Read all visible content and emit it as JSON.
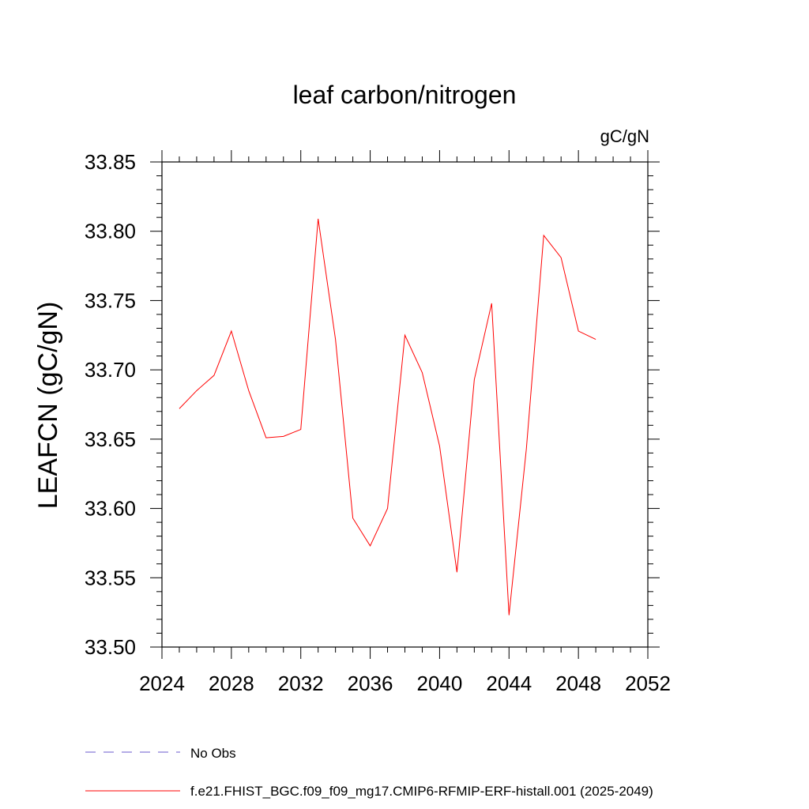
{
  "chart_data": {
    "type": "line",
    "title": "leaf carbon/nitrogen",
    "units_label": "gC/gN",
    "ylabel": "LEAFCN  (gC/gN)",
    "xlabel": "",
    "xlim": [
      2024,
      2052
    ],
    "ylim": [
      33.5,
      33.85
    ],
    "x_ticks": [
      "2024",
      "2028",
      "2032",
      "2036",
      "2040",
      "2044",
      "2048",
      "2052"
    ],
    "y_ticks": [
      "33.50",
      "33.55",
      "33.60",
      "33.65",
      "33.70",
      "33.75",
      "33.80",
      "33.85"
    ],
    "grid": false,
    "series": [
      {
        "name": "f.e21.FHIST_BGC.f09_f09_mg17.CMIP6-RFMIP-ERF-histall.001 (2025-2049)",
        "color": "#ff0000",
        "style": "solid",
        "x": [
          2025,
          2026,
          2027,
          2028,
          2029,
          2030,
          2031,
          2032,
          2033,
          2034,
          2035,
          2036,
          2037,
          2038,
          2039,
          2040,
          2041,
          2042,
          2043,
          2044,
          2045,
          2046,
          2047,
          2048,
          2049
        ],
        "values": [
          33.672,
          33.685,
          33.696,
          33.728,
          33.685,
          33.651,
          33.652,
          33.657,
          33.809,
          33.722,
          33.593,
          33.573,
          33.6,
          33.725,
          33.698,
          33.645,
          33.554,
          33.693,
          33.748,
          33.523,
          33.643,
          33.797,
          33.781,
          33.728,
          33.722
        ]
      }
    ],
    "legend": [
      {
        "label": "No Obs",
        "color": "#6a5acd",
        "style": "dashed"
      },
      {
        "label": "f.e21.FHIST_BGC.f09_f09_mg17.CMIP6-RFMIP-ERF-histall.001 (2025-2049)",
        "color": "#ff0000",
        "style": "solid"
      }
    ]
  }
}
